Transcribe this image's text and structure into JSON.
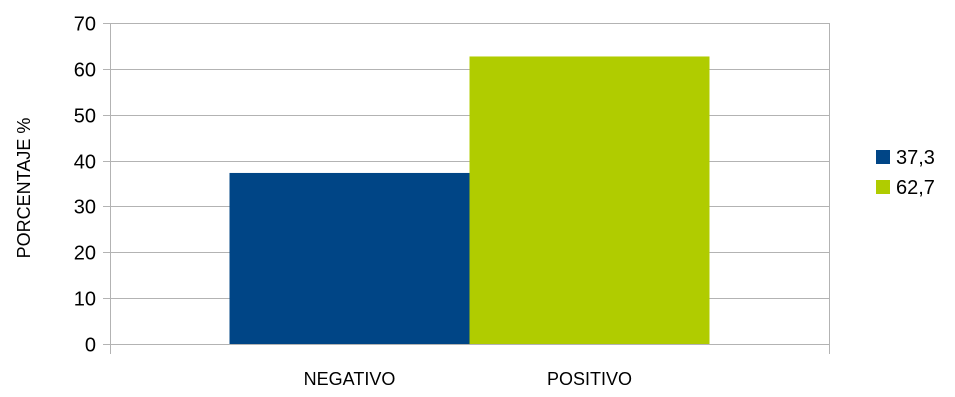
{
  "chart_data": {
    "type": "bar",
    "title": "",
    "xlabel": "",
    "ylabel": "PORCENTAJE %",
    "ylim": [
      0,
      70
    ],
    "yticks": [
      0,
      10,
      20,
      30,
      40,
      50,
      60,
      70
    ],
    "grid": true,
    "legend_position": "right",
    "categories": [
      "NEGATIVO",
      "POSITIVO"
    ],
    "series": [
      {
        "name": "37,3",
        "color": "#004586",
        "values": [
          37.3,
          null
        ]
      },
      {
        "name": "62,7",
        "color": "#b0cc00",
        "values": [
          null,
          62.7
        ]
      }
    ]
  }
}
